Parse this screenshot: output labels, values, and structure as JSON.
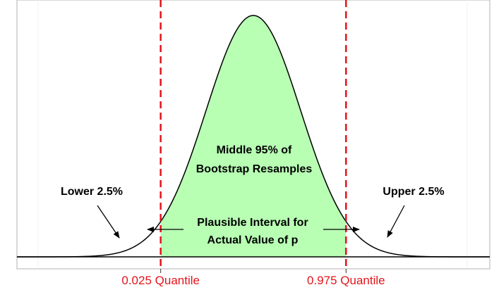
{
  "chart_data": {
    "type": "area",
    "distribution": "normal",
    "xlim": [
      -5,
      5
    ],
    "ylim": [
      0,
      1
    ],
    "mean": 0,
    "sd": 1,
    "shaded_region": {
      "from": -1.96,
      "to": 1.96,
      "color": "#b8ffb4"
    },
    "cutoffs": [
      {
        "quantile": 0.025,
        "z": -1.96,
        "label": "0.025 Quantile"
      },
      {
        "quantile": 0.975,
        "z": 1.96,
        "label": "0.975 Quantile"
      }
    ],
    "cutoff_color": "#e3141b",
    "annotations": {
      "middle_line1": "Middle 95% of",
      "middle_line2": "Bootstrap Resamples",
      "lower_tail": "Lower 2.5%",
      "upper_tail": "Upper 2.5%",
      "interval_line1": "Plausible Interval for",
      "interval_line2": "Actual Value of p"
    },
    "grid": false
  }
}
